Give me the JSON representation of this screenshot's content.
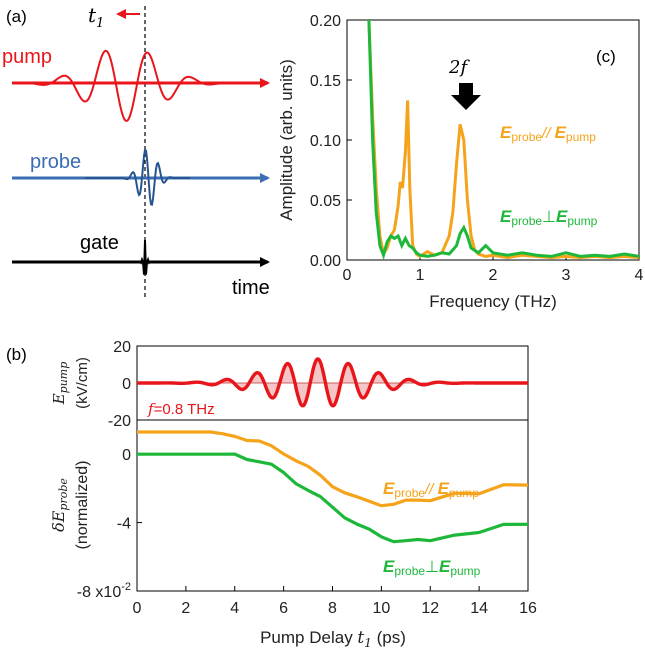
{
  "colors": {
    "pump": "#e8151b",
    "probe": "#3a6db3",
    "gate": "#000000",
    "parallel": "#f5a31a",
    "perp": "#1db83a",
    "pumpFill": "#f4c6c6"
  },
  "panel_a": {
    "label": "(a)",
    "t1": "t",
    "t1_sub": "1",
    "pump": "pump",
    "probe": "probe",
    "gate": "gate",
    "time": "time"
  },
  "panel_c": {
    "label": "(c)",
    "marker": "2f",
    "par_E1": "E",
    "par_sub1": "probe",
    "par_mid": "// ",
    "par_E2": "E",
    "par_sub2": "pump",
    "perp_E1": "E",
    "perp_sub1": "probe",
    "perp_mid": "⊥",
    "perp_E2": "E",
    "perp_sub2": "pump"
  },
  "panel_b": {
    "label": "(b)",
    "f_label": "f",
    "f_value": "=0.8 THz",
    "par_E1": "E",
    "par_sub1": "probe",
    "par_mid": "// ",
    "par_E2": "E",
    "par_sub2": "pump",
    "perp_E1": "E",
    "perp_sub1": "probe",
    "perp_mid": "⊥",
    "perp_E2": "E",
    "perp_sub2": "pump"
  },
  "chart_data": [
    {
      "type": "line",
      "panel": "c",
      "xlabel": "Frequency (THz)",
      "ylabel": "Amplitude (arb. units)",
      "xlim": [
        0,
        4
      ],
      "ylim": [
        0,
        0.2
      ],
      "xticks": [
        "0",
        "1",
        "2",
        "3",
        "4"
      ],
      "yticks": [
        "0.00",
        "0.05",
        "0.10",
        "0.15",
        "0.20"
      ],
      "series": [
        {
          "name": "Eprobe // Epump",
          "x": [
            0.3,
            0.35,
            0.4,
            0.45,
            0.5,
            0.55,
            0.6,
            0.65,
            0.7,
            0.73,
            0.76,
            0.8,
            0.83,
            0.86,
            0.9,
            0.95,
            1.0,
            1.1,
            1.2,
            1.3,
            1.4,
            1.45,
            1.5,
            1.55,
            1.6,
            1.65,
            1.7,
            1.75,
            1.8,
            1.9,
            2.0,
            2.1,
            2.2,
            2.4,
            2.6,
            2.8,
            3.0,
            3.2,
            3.4,
            3.6,
            3.8,
            4.0
          ],
          "y": [
            0.2,
            0.12,
            0.06,
            0.02,
            0.005,
            0.01,
            0.02,
            0.025,
            0.045,
            0.065,
            0.06,
            0.09,
            0.133,
            0.06,
            0.012,
            0.005,
            0.003,
            0.007,
            0.004,
            0.006,
            0.02,
            0.04,
            0.08,
            0.113,
            0.1,
            0.05,
            0.02,
            0.008,
            0.005,
            0.003,
            0.004,
            0.003,
            0.002,
            0.004,
            0.003,
            0.002,
            0.003,
            0.002,
            0.003,
            0.002,
            0.003,
            0.002
          ]
        },
        {
          "name": "Eprobe ⊥ Epump",
          "x": [
            0.3,
            0.35,
            0.4,
            0.45,
            0.5,
            0.55,
            0.6,
            0.65,
            0.7,
            0.75,
            0.8,
            0.85,
            0.9,
            0.95,
            1.0,
            1.1,
            1.2,
            1.3,
            1.4,
            1.5,
            1.55,
            1.6,
            1.65,
            1.7,
            1.8,
            1.9,
            2.0,
            2.2,
            2.4,
            2.6,
            2.8,
            3.0,
            3.2,
            3.4,
            3.6,
            3.8,
            4.0
          ],
          "y": [
            0.2,
            0.1,
            0.04,
            0.012,
            0.004,
            0.015,
            0.02,
            0.018,
            0.02,
            0.012,
            0.018,
            0.012,
            0.01,
            0.006,
            0.004,
            0.003,
            0.004,
            0.006,
            0.005,
            0.012,
            0.022,
            0.027,
            0.02,
            0.01,
            0.006,
            0.012,
            0.006,
            0.004,
            0.006,
            0.004,
            0.003,
            0.006,
            0.003,
            0.004,
            0.003,
            0.005,
            0.003
          ]
        }
      ]
    },
    {
      "type": "line",
      "panel": "b-top",
      "ylabel": "E_pump (kV/cm)",
      "xlim": [
        0,
        16
      ],
      "ylim": [
        -20,
        20
      ],
      "yticks": [
        "20",
        "0",
        "-20"
      ],
      "series": [
        {
          "name": "f=0.8 THz",
          "frequency_THz": 0.8,
          "envelope_center_ps": 7.4,
          "envelope_width_ps": 2.7,
          "amplitude_kVcm": 13,
          "phase_rad": 0
        }
      ]
    },
    {
      "type": "line",
      "panel": "b-bottom",
      "xlabel": "Pump Delay t1 (ps)",
      "ylabel": "δE_probe (normalized)",
      "xlim": [
        0,
        16
      ],
      "ylim": [
        -8,
        2
      ],
      "xticks": [
        "0",
        "2",
        "4",
        "6",
        "8",
        "10",
        "12",
        "14",
        "16"
      ],
      "yticks": [
        "0",
        "-4",
        "-8 x10"
      ],
      "yticks_exponent": "-2",
      "series": [
        {
          "name": "Eprobe // Epump",
          "x": [
            0,
            1,
            2,
            3,
            3.5,
            4,
            4.5,
            5,
            5.5,
            6,
            6.5,
            7,
            7.5,
            8,
            8.5,
            9,
            9.5,
            10,
            10.5,
            11,
            11.5,
            12,
            13,
            14,
            15,
            16
          ],
          "y": [
            1.3,
            1.3,
            1.3,
            1.3,
            1.2,
            1.1,
            0.9,
            0.7,
            0.4,
            0.1,
            -0.3,
            -0.8,
            -1.3,
            -1.8,
            -2.2,
            -2.6,
            -2.8,
            -2.9,
            -2.9,
            -2.8,
            -2.7,
            -2.6,
            -2.4,
            -2.2,
            -1.9,
            -1.7
          ]
        },
        {
          "name": "Eprobe ⊥ Epump",
          "x": [
            0,
            1,
            2,
            3,
            3.5,
            4,
            4.5,
            5,
            5.5,
            6,
            6.5,
            7,
            7.5,
            8,
            8.5,
            9,
            9.5,
            10,
            10.5,
            11,
            11.5,
            12,
            13,
            14,
            15,
            16
          ],
          "y": [
            0,
            0,
            0,
            0,
            0,
            -0.05,
            -0.2,
            -0.4,
            -0.7,
            -1.1,
            -1.6,
            -2.1,
            -2.6,
            -3.1,
            -3.6,
            -4.1,
            -4.5,
            -4.8,
            -5.0,
            -5.1,
            -5.1,
            -5.0,
            -4.8,
            -4.5,
            -4.2,
            -4.0
          ]
        }
      ]
    }
  ]
}
